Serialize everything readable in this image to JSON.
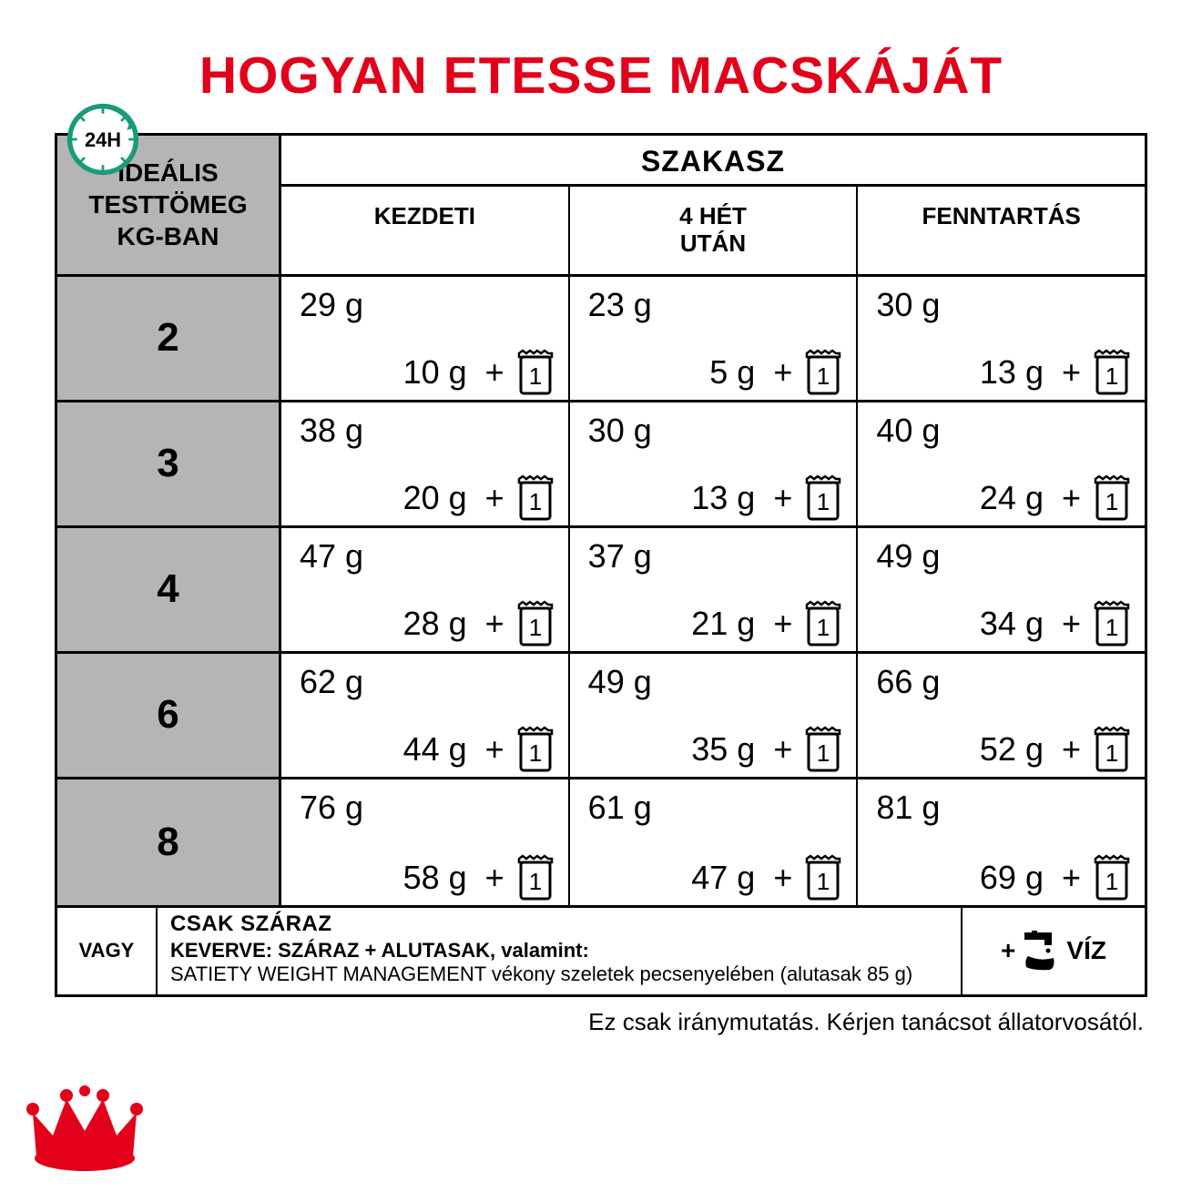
{
  "title": "HOGYAN ETESSE MACSKÁJÁT",
  "clock_label": "24H",
  "colors": {
    "title": "#e2001a",
    "header_bg": "#b5b5b5",
    "triangle": "#b5cec2",
    "border": "#000000",
    "clock_ring": "#1a9b7a",
    "crown": "#e2001a"
  },
  "table": {
    "weight_header": "IDEÁLIS\nTESTTÖMEG\nKG-BAN",
    "phase_header": "SZAKASZ",
    "phases": [
      "KEZDETI",
      "4 HÉT\nUTÁN",
      "FENNTARTÁS"
    ],
    "rows": [
      {
        "weight": "2",
        "cells": [
          {
            "dry": "29 g",
            "mix": "10 g",
            "pouch": "1"
          },
          {
            "dry": "23 g",
            "mix": "5 g",
            "pouch": "1"
          },
          {
            "dry": "30 g",
            "mix": "13 g",
            "pouch": "1"
          }
        ]
      },
      {
        "weight": "3",
        "cells": [
          {
            "dry": "38 g",
            "mix": "20 g",
            "pouch": "1"
          },
          {
            "dry": "30 g",
            "mix": "13 g",
            "pouch": "1"
          },
          {
            "dry": "40 g",
            "mix": "24 g",
            "pouch": "1"
          }
        ]
      },
      {
        "weight": "4",
        "cells": [
          {
            "dry": "47 g",
            "mix": "28 g",
            "pouch": "1"
          },
          {
            "dry": "37 g",
            "mix": "21 g",
            "pouch": "1"
          },
          {
            "dry": "49 g",
            "mix": "34 g",
            "pouch": "1"
          }
        ]
      },
      {
        "weight": "6",
        "cells": [
          {
            "dry": "62 g",
            "mix": "44 g",
            "pouch": "1"
          },
          {
            "dry": "49 g",
            "mix": "35 g",
            "pouch": "1"
          },
          {
            "dry": "66 g",
            "mix": "52 g",
            "pouch": "1"
          }
        ]
      },
      {
        "weight": "8",
        "cells": [
          {
            "dry": "76 g",
            "mix": "58 g",
            "pouch": "1"
          },
          {
            "dry": "61 g",
            "mix": "47 g",
            "pouch": "1"
          },
          {
            "dry": "81 g",
            "mix": "69 g",
            "pouch": "1"
          }
        ]
      }
    ]
  },
  "legend": {
    "or": "VAGY",
    "dry_only": "CSAK SZÁRAZ",
    "mixed_bold": "KEVERVE: SZÁRAZ + ALUTASAK, valamint:",
    "mixed_detail": "SATIETY WEIGHT MANAGEMENT vékony szeletek pecsenyelében (alutasak 85 g)",
    "water_plus": "+",
    "water": "VÍZ"
  },
  "disclaimer": "Ez csak iránymutatás. Kérjen tanácsot állatorvosától."
}
